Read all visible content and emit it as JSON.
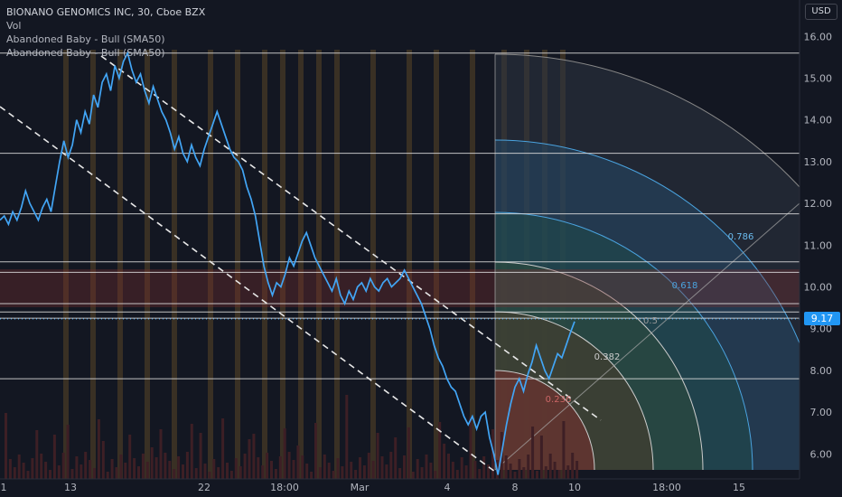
{
  "header": {
    "title": "BIONANO GENOMICS INC, 30, Cboe BZX",
    "indicators": [
      "Vol",
      "Abandoned Baby - Bull (SMA50)",
      "Abandoned Baby - Bull (SMA50)"
    ],
    "currency": "USD"
  },
  "last_price": "9.17",
  "colors": {
    "background": "#131722",
    "price_line": "#42a5f5",
    "price_tag": "#2196f3",
    "axis_text": "#b2b5be",
    "volume_bar": "#3d1f25",
    "abandoned_baby_column": "#5a4526",
    "fib_zone_red": "#6b2a2a",
    "fib_zone_blue": "#2a4a6b"
  },
  "chart_data": {
    "type": "line",
    "title": "BIONANO GENOMICS INC, 30, Cboe BZX",
    "xlabel": "",
    "ylabel": "",
    "x_tick_labels": [
      "1",
      "13",
      "22",
      "18:00",
      "Mar",
      "4",
      "8",
      "10",
      "18:00",
      "15"
    ],
    "y_tick_labels": [
      "16.00",
      "15.00",
      "14.00",
      "13.00",
      "12.00",
      "11.00",
      "10.00",
      "9.00",
      "8.00",
      "7.00",
      "6.00"
    ],
    "ylim": [
      5.3,
      16.4
    ],
    "series": [
      {
        "values": [
          11.6,
          11.7,
          11.5,
          11.8,
          11.6,
          11.9,
          12.3,
          12.0,
          11.8,
          11.6,
          11.9,
          12.1,
          11.8,
          12.4,
          13.0,
          13.5,
          13.1,
          13.4,
          14.0,
          13.7,
          14.2,
          13.9,
          14.6,
          14.3,
          14.9,
          15.1,
          14.7,
          15.3,
          15.0,
          15.4,
          15.6,
          15.2,
          14.9,
          15.1,
          14.7,
          14.4,
          14.8,
          14.5,
          14.2,
          14.0,
          13.7,
          13.3,
          13.6,
          13.2,
          13.0,
          13.4,
          13.1,
          12.9,
          13.3,
          13.6,
          13.9,
          14.2,
          13.9,
          13.6,
          13.3,
          13.1,
          13.0,
          12.8,
          12.4,
          12.1,
          11.7,
          11.1,
          10.5,
          10.1,
          9.8,
          10.1,
          10.0,
          10.3,
          10.7,
          10.5,
          10.8,
          11.1,
          11.3,
          11.0,
          10.7,
          10.5,
          10.3,
          10.1,
          9.9,
          10.2,
          9.8,
          9.6,
          9.9,
          9.7,
          10.0,
          10.1,
          9.9,
          10.2,
          10.0,
          9.9,
          10.1,
          10.2,
          10.0,
          10.1,
          10.2,
          10.4,
          10.2,
          10.0,
          9.8,
          9.6,
          9.3,
          9.0,
          8.6,
          8.3,
          8.1,
          7.8,
          7.6,
          7.5,
          7.2,
          6.9,
          6.7,
          6.9,
          6.6,
          6.9,
          7.0,
          6.4,
          6.0,
          5.5,
          6.1,
          6.7,
          7.2,
          7.6,
          7.8,
          7.5,
          7.9,
          8.2,
          8.6,
          8.3,
          8.0,
          7.8,
          8.1,
          8.4,
          8.3,
          8.6,
          8.9,
          9.17
        ]
      }
    ],
    "fibonacci_levels": [
      "0.236",
      "0.382",
      "0.5",
      "0.618",
      "0.786"
    ],
    "horizontal_levels": [
      15.6,
      13.2,
      11.75,
      10.6,
      10.35,
      9.6,
      9.4,
      9.25,
      7.8
    ],
    "grid": false,
    "legend": "top-left"
  }
}
